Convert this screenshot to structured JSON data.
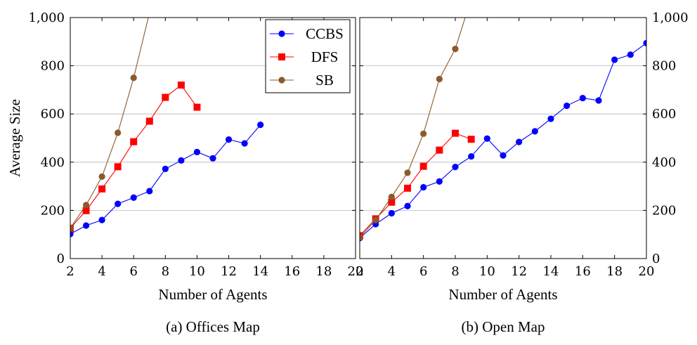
{
  "chart_data": [
    {
      "type": "line",
      "caption": "(a) Offices Map",
      "xlabel": "Number of Agents",
      "ylabel": "Average Size",
      "xlim": [
        2,
        20
      ],
      "ylim": [
        0,
        1000
      ],
      "xticks": [
        "2",
        "4",
        "6",
        "8",
        "10",
        "12",
        "14",
        "16",
        "18",
        "20"
      ],
      "yticks": [
        "0",
        "200",
        "400",
        "600",
        "800",
        "1,000"
      ],
      "grid": "horizontal",
      "legend_position": "top-right",
      "series": [
        {
          "name": "CCBS",
          "color": "#0000ff",
          "marker": "circle",
          "x": [
            2,
            3,
            4,
            5,
            6,
            7,
            8,
            9,
            10,
            11,
            12,
            13,
            14
          ],
          "y": [
            102,
            137,
            160,
            227,
            253,
            280,
            372,
            407,
            442,
            416,
            494,
            478,
            555
          ]
        },
        {
          "name": "DFS",
          "color": "#ff0000",
          "marker": "square",
          "x": [
            2,
            3,
            4,
            5,
            6,
            7,
            8,
            9,
            10
          ],
          "y": [
            126,
            199,
            289,
            381,
            485,
            570,
            669,
            720,
            628
          ]
        },
        {
          "name": "SB",
          "color": "#8b5a2b",
          "marker": "circle",
          "x": [
            2,
            3,
            4,
            5,
            6,
            7
          ],
          "y": [
            127,
            222,
            340,
            522,
            750,
            1020
          ]
        }
      ]
    },
    {
      "type": "line",
      "caption": "(b) Open Map",
      "xlabel": "Number of Agents",
      "ylabel": "",
      "xlim": [
        2,
        20
      ],
      "ylim": [
        0,
        1000
      ],
      "xticks": [
        "2",
        "4",
        "6",
        "8",
        "10",
        "12",
        "14",
        "16",
        "18",
        "20"
      ],
      "yticks": [
        "0",
        "200",
        "400",
        "600",
        "800",
        "1,000"
      ],
      "grid": "horizontal",
      "series": [
        {
          "name": "CCBS",
          "color": "#0000ff",
          "marker": "circle",
          "x": [
            2,
            3,
            4,
            5,
            6,
            7,
            8,
            9,
            10,
            11,
            12,
            13,
            14,
            15,
            16,
            17,
            18,
            19,
            20
          ],
          "y": [
            85,
            143,
            188,
            218,
            296,
            320,
            380,
            424,
            498,
            428,
            484,
            528,
            580,
            634,
            666,
            656,
            825,
            846,
            894
          ]
        },
        {
          "name": "DFS",
          "color": "#ff0000",
          "marker": "square",
          "x": [
            2,
            3,
            4,
            5,
            6,
            7,
            8,
            9
          ],
          "y": [
            95,
            165,
            234,
            292,
            383,
            450,
            520,
            495
          ]
        },
        {
          "name": "SB",
          "color": "#8b5a2b",
          "marker": "circle",
          "x": [
            2,
            3,
            4,
            5,
            6,
            7,
            8,
            9
          ],
          "y": [
            88,
            160,
            256,
            356,
            518,
            745,
            870,
            1080
          ]
        }
      ]
    }
  ]
}
